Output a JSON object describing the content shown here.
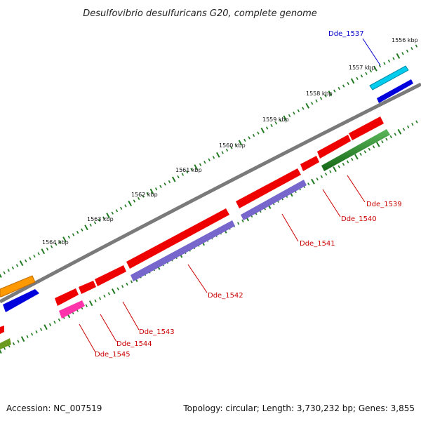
{
  "title": "Desulfovibrio desulfuricans G20, complete genome",
  "footer": {
    "accession": "Accession: NC_007519",
    "summary": "Topology: circular; Length: 3,730,232 bp; Genes: 3,855"
  },
  "colors": {
    "backbone": "#7a7a7a",
    "dots": "#1f7a1f",
    "gene_label": "#cc0000",
    "highlight_label": "#0000cc"
  },
  "kbp_labels": [
    "1556 kbp",
    "1557 kbp",
    "1558 kbp",
    "1559 kbp",
    "1560 kbp",
    "1561 kbp",
    "1562 kbp",
    "1563 kbp",
    "1564 kbp"
  ],
  "genes": [
    {
      "id": "Dde_1537",
      "color": "#00ccee",
      "strand": "+",
      "highlight": true
    },
    {
      "id": "Dde_1539",
      "color": "#228822",
      "strand": "-",
      "highlight": false
    },
    {
      "id": "Dde_1540",
      "color": "#ee0000",
      "strand": "-",
      "highlight": false
    },
    {
      "id": "Dde_1541",
      "color": "#ee0000",
      "strand": "-",
      "highlight": false
    },
    {
      "id": "Dde_1542",
      "color": "#ee0000",
      "strand": "-",
      "highlight": false
    },
    {
      "id": "Dde_1543",
      "color": "#ee0000",
      "strand": "-",
      "highlight": false
    },
    {
      "id": "Dde_1544",
      "color": "#ee0000",
      "strand": "-",
      "highlight": false
    },
    {
      "id": "Dde_1545",
      "color": "#ff33aa",
      "strand": "-",
      "highlight": false
    }
  ]
}
